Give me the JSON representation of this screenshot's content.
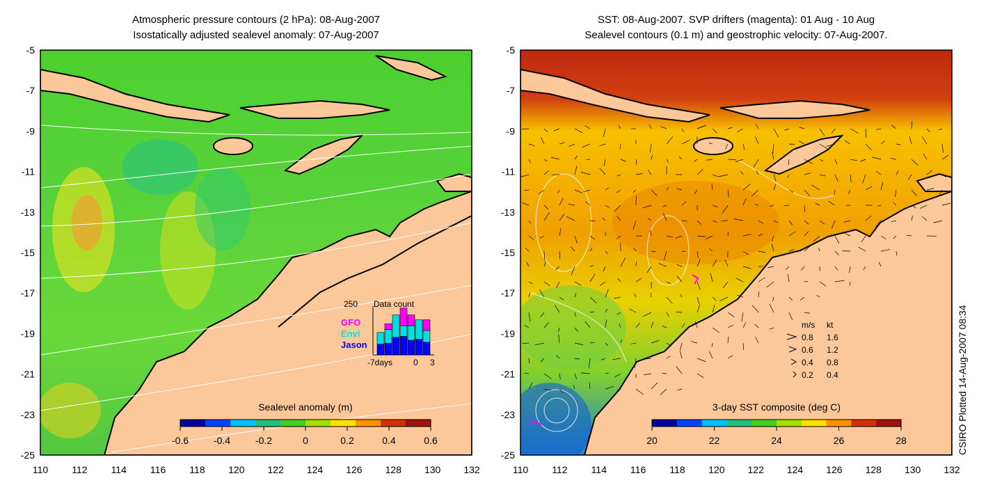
{
  "left_map": {
    "title_line1": "Atmospheric pressure contours (2 hPa): 08-Aug-2007",
    "title_line2": "Isostatically adjusted sealevel anomaly: 07-Aug-2007",
    "colorbar_label": "Sealevel anomaly (m)",
    "colorbar_ticks": [
      "-0.6",
      "-0.4",
      "-0.2",
      "0",
      "0.2",
      "0.4",
      "0.6"
    ],
    "colorbar_colors": [
      "#0000a0",
      "#0040ff",
      "#00c0ff",
      "#20c080",
      "#40d020",
      "#a0e000",
      "#ffe000",
      "#ff9000",
      "#d03000",
      "#a01010"
    ],
    "inset": {
      "title": "Data count",
      "ymax": "250",
      "xlabel_left": "-7days",
      "xlabel_mid": "0",
      "xlabel_right": "3",
      "missions": [
        {
          "name": "GFO",
          "color": "#ff00ff"
        },
        {
          "name": "Envi",
          "color": "#00e0e0"
        },
        {
          "name": "Jason",
          "color": "#0000ff"
        }
      ],
      "bars": [
        {
          "jason": 55,
          "envi": 60,
          "gfo": 0
        },
        {
          "jason": 60,
          "envi": 70,
          "gfo": 30
        },
        {
          "jason": 90,
          "envi": 115,
          "gfo": 0
        },
        {
          "jason": 95,
          "envi": 55,
          "gfo": 90
        },
        {
          "jason": 75,
          "envi": 75,
          "gfo": 55
        },
        {
          "jason": 80,
          "envi": 100,
          "gfo": 0
        },
        {
          "jason": 65,
          "envi": 60,
          "gfo": 55
        }
      ]
    }
  },
  "right_map": {
    "title_line1": "SST: 08-Aug-2007. SVP drifters (magenta): 01 Aug - 10 Aug",
    "title_line2": "Sealevel contours (0.1 m) and geostrophic velocity: 07-Aug-2007.",
    "colorbar_label": "3-day SST composite (deg C)",
    "colorbar_ticks": [
      "20",
      "22",
      "24",
      "26",
      "28"
    ],
    "colorbar_colors": [
      "#0000a0",
      "#0040ff",
      "#00c0ff",
      "#20c080",
      "#40d020",
      "#a0e000",
      "#ffe000",
      "#ff9000",
      "#d03000",
      "#a01010"
    ],
    "velocity_legend": {
      "header_ms": "m/s",
      "header_kt": "kt",
      "rows": [
        {
          "ms": "0.8",
          "kt": "1.6"
        },
        {
          "ms": "0.6",
          "kt": "1.2"
        },
        {
          "ms": "0.4",
          "kt": "0.8"
        },
        {
          "ms": "0.2",
          "kt": "0.4"
        }
      ]
    }
  },
  "axes": {
    "lat_ticks": [
      "-5",
      "-7",
      "-9",
      "-11",
      "-13",
      "-15",
      "-17",
      "-19",
      "-21",
      "-23",
      "-25"
    ],
    "lon_ticks": [
      "110",
      "112",
      "114",
      "116",
      "118",
      "120",
      "122",
      "124",
      "126",
      "128",
      "130",
      "132"
    ],
    "lat_range": [
      -25,
      -5
    ],
    "lon_range": [
      110,
      132
    ]
  },
  "stamp": "CSIRO Plotted 14-Aug-2007 08:34",
  "colors": {
    "land": "#fcc89a",
    "ocean_left": "#40c838",
    "ocean_right": "#f0b000",
    "coast": "#000000"
  }
}
